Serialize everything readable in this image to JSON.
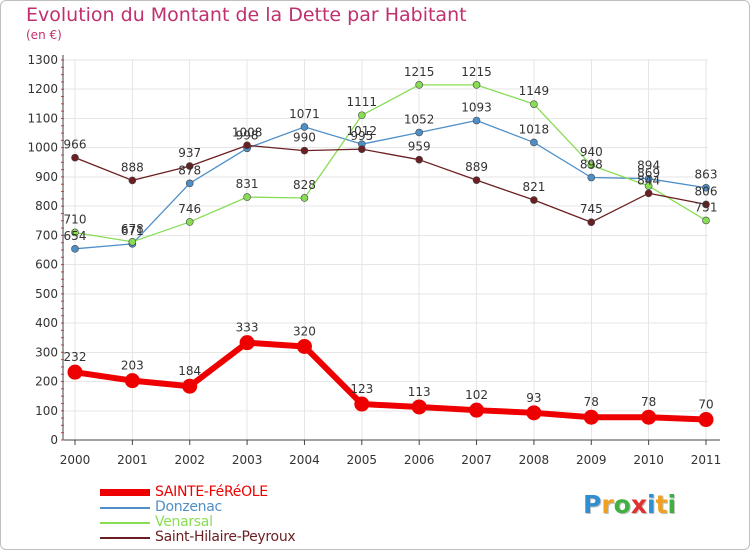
{
  "header": {
    "title": "Evolution du Montant de la Dette par Habitant",
    "subtitle": "(en €)"
  },
  "chart_data": {
    "type": "line",
    "title": "Evolution du Montant de la Dette par Habitant",
    "ylabel": "(en €)",
    "xlabel": "",
    "x": [
      "2000",
      "2001",
      "2002",
      "2003",
      "2004",
      "2005",
      "2006",
      "2007",
      "2008",
      "2009",
      "2010",
      "2011"
    ],
    "ylim": [
      0,
      1300
    ],
    "yticks": [
      0,
      100,
      200,
      300,
      400,
      500,
      600,
      700,
      800,
      900,
      1000,
      1100,
      1200,
      1300
    ],
    "grid": true,
    "legend_position": "bottom-left",
    "series": [
      {
        "name": "SAINTE-FéRéOLE",
        "color": "#ee0000",
        "values": [
          232,
          203,
          184,
          333,
          320,
          123,
          113,
          102,
          93,
          78,
          78,
          70
        ]
      },
      {
        "name": "Donzenac",
        "color": "#4f8fc8",
        "values": [
          654,
          671,
          878,
          998,
          1071,
          1012,
          1052,
          1093,
          1018,
          898,
          894,
          863
        ]
      },
      {
        "name": "Venarsal",
        "color": "#88dd55",
        "values": [
          710,
          678,
          746,
          831,
          828,
          1111,
          1215,
          1215,
          1149,
          940,
          869,
          751
        ]
      },
      {
        "name": "Saint-Hilaire-Peyroux",
        "color": "#6b1f22",
        "values": [
          966,
          888,
          937,
          1008,
          990,
          995,
          959,
          889,
          821,
          745,
          844,
          806
        ]
      }
    ]
  },
  "logo": {
    "letters": [
      "P",
      "r",
      "o",
      "x",
      "i",
      "t",
      "i"
    ],
    "colors": [
      "#2f8fd0",
      "#f0a020",
      "#40b040",
      "#e03030",
      "#2f8fd0",
      "#f0a020",
      "#40b040"
    ]
  }
}
